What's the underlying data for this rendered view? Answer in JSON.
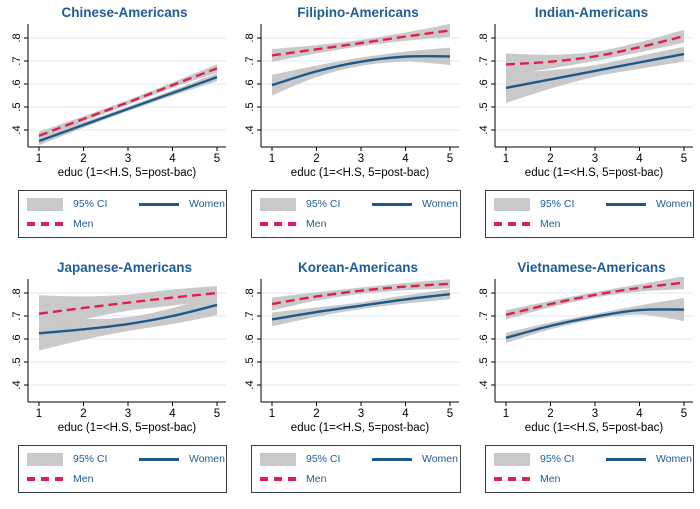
{
  "page": {
    "background": "#ffffff"
  },
  "legend": {
    "ci_label": "95% CI",
    "women_label": "Women",
    "men_label": "Men"
  },
  "chart_data": {
    "type": "line",
    "layout": "2x3 small multiples",
    "grid": true,
    "legend_position": "below each panel",
    "x": [
      1,
      2,
      3,
      4,
      5
    ],
    "xticks": [
      "1",
      "2",
      "3",
      "4",
      "5"
    ],
    "xlabel": "educ (1=<H.S, 5=post-bac)",
    "yticks": [
      0.4,
      0.5,
      0.6,
      0.7,
      0.8
    ],
    "ytick_labels": [
      ".4",
      ".5",
      ".6",
      ".7",
      ".8"
    ],
    "ylim": [
      0.33,
      0.88
    ],
    "colors": {
      "women_line": "#1d5a8c",
      "men_line": "#e0204c",
      "ci_fill": "#c9c9c9",
      "grid_line": "#e2edf2",
      "axis": "#000000",
      "axis_text": "#000000",
      "title_text": "#1e5c97"
    },
    "panels": [
      {
        "title": "Chinese-Americans",
        "series": [
          {
            "name": "Women",
            "values": [
              0.352,
              0.422,
              0.492,
              0.561,
              0.63
            ],
            "ci_lower": [
              0.334,
              0.41,
              0.482,
              0.549,
              0.612
            ],
            "ci_upper": [
              0.37,
              0.434,
              0.502,
              0.573,
              0.648
            ]
          },
          {
            "name": "Men",
            "values": [
              0.375,
              0.448,
              0.52,
              0.595,
              0.668
            ],
            "ci_lower": [
              0.357,
              0.436,
              0.51,
              0.583,
              0.65
            ],
            "ci_upper": [
              0.393,
              0.46,
              0.53,
              0.607,
              0.686
            ]
          }
        ]
      },
      {
        "title": "Filipino-Americans",
        "series": [
          {
            "name": "Women",
            "values": [
              0.595,
              0.655,
              0.697,
              0.719,
              0.72
            ],
            "ci_lower": [
              0.55,
              0.63,
              0.679,
              0.697,
              0.682
            ],
            "ci_upper": [
              0.64,
              0.68,
              0.715,
              0.741,
              0.758
            ]
          },
          {
            "name": "Men",
            "values": [
              0.724,
              0.751,
              0.778,
              0.806,
              0.833
            ],
            "ci_lower": [
              0.696,
              0.733,
              0.764,
              0.788,
              0.805
            ],
            "ci_upper": [
              0.752,
              0.769,
              0.792,
              0.824,
              0.861
            ]
          }
        ]
      },
      {
        "title": "Indian-Americans",
        "series": [
          {
            "name": "Women",
            "values": [
              0.583,
              0.62,
              0.657,
              0.694,
              0.73
            ],
            "ci_lower": [
              0.518,
              0.58,
              0.632,
              0.666,
              0.698
            ],
            "ci_upper": [
              0.648,
              0.66,
              0.682,
              0.722,
              0.762
            ]
          },
          {
            "name": "Men",
            "values": [
              0.685,
              0.697,
              0.72,
              0.76,
              0.808
            ],
            "ci_lower": [
              0.637,
              0.667,
              0.7,
              0.738,
              0.78
            ],
            "ci_upper": [
              0.733,
              0.727,
              0.74,
              0.782,
              0.836
            ]
          }
        ]
      },
      {
        "title": "Japanese-Americans",
        "series": [
          {
            "name": "Women",
            "values": [
              0.625,
              0.642,
              0.665,
              0.7,
              0.748
            ],
            "ci_lower": [
              0.55,
              0.597,
              0.635,
              0.665,
              0.703
            ],
            "ci_upper": [
              0.7,
              0.687,
              0.695,
              0.735,
              0.793
            ]
          },
          {
            "name": "Men",
            "values": [
              0.71,
              0.735,
              0.758,
              0.78,
              0.8
            ],
            "ci_lower": [
              0.63,
              0.685,
              0.723,
              0.745,
              0.77
            ],
            "ci_upper": [
              0.79,
              0.785,
              0.793,
              0.815,
              0.83
            ]
          }
        ]
      },
      {
        "title": "Korean-Americans",
        "series": [
          {
            "name": "Women",
            "values": [
              0.685,
              0.717,
              0.745,
              0.772,
              0.795
            ],
            "ci_lower": [
              0.655,
              0.697,
              0.73,
              0.754,
              0.773
            ],
            "ci_upper": [
              0.715,
              0.737,
              0.76,
              0.79,
              0.817
            ]
          },
          {
            "name": "Men",
            "values": [
              0.752,
              0.785,
              0.81,
              0.828,
              0.84
            ],
            "ci_lower": [
              0.724,
              0.767,
              0.796,
              0.812,
              0.82
            ],
            "ci_upper": [
              0.78,
              0.803,
              0.824,
              0.844,
              0.86
            ]
          }
        ]
      },
      {
        "title": "Vietnamese-Americans",
        "series": [
          {
            "name": "Women",
            "values": [
              0.605,
              0.657,
              0.697,
              0.726,
              0.728
            ],
            "ci_lower": [
              0.583,
              0.642,
              0.685,
              0.706,
              0.678
            ],
            "ci_upper": [
              0.627,
              0.672,
              0.709,
              0.746,
              0.778
            ]
          },
          {
            "name": "Men",
            "values": [
              0.705,
              0.752,
              0.792,
              0.822,
              0.845
            ],
            "ci_lower": [
              0.685,
              0.738,
              0.78,
              0.806,
              0.817
            ],
            "ci_upper": [
              0.725,
              0.766,
              0.804,
              0.838,
              0.873
            ]
          }
        ]
      }
    ]
  }
}
